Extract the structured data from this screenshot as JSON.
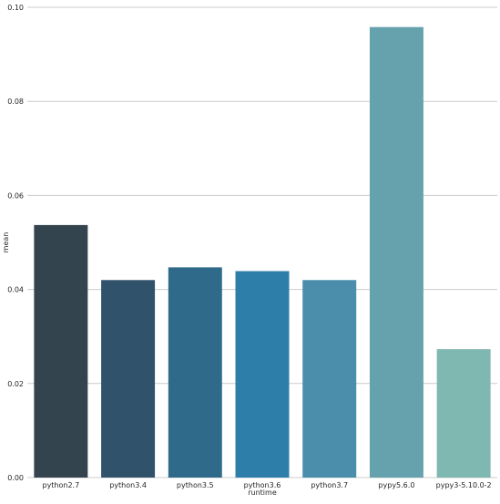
{
  "chart_data": {
    "type": "bar",
    "categories": [
      "python2.7",
      "python3.4",
      "python3.5",
      "python3.6",
      "python3.7",
      "pypy5.6.0",
      "pypy3-5.10.0-2"
    ],
    "values": [
      0.0537,
      0.042,
      0.0447,
      0.0439,
      0.042,
      0.0958,
      0.0273
    ],
    "colors": [
      "#33444f",
      "#30536b",
      "#306a8b",
      "#2e7eaa",
      "#4a8eab",
      "#65a2ae",
      "#7fb8b0"
    ],
    "title": "",
    "xlabel": "runtime",
    "ylabel": "mean",
    "ylim": [
      0,
      0.1
    ],
    "yticks": [
      0,
      0.02,
      0.04,
      0.06,
      0.08,
      0.1
    ],
    "ytick_labels": [
      "0.00",
      "0.02",
      "0.04",
      "0.06",
      "0.08",
      "0.10"
    ],
    "grid": "horizontal",
    "grid_color": "#cccccc",
    "legend": "none"
  }
}
